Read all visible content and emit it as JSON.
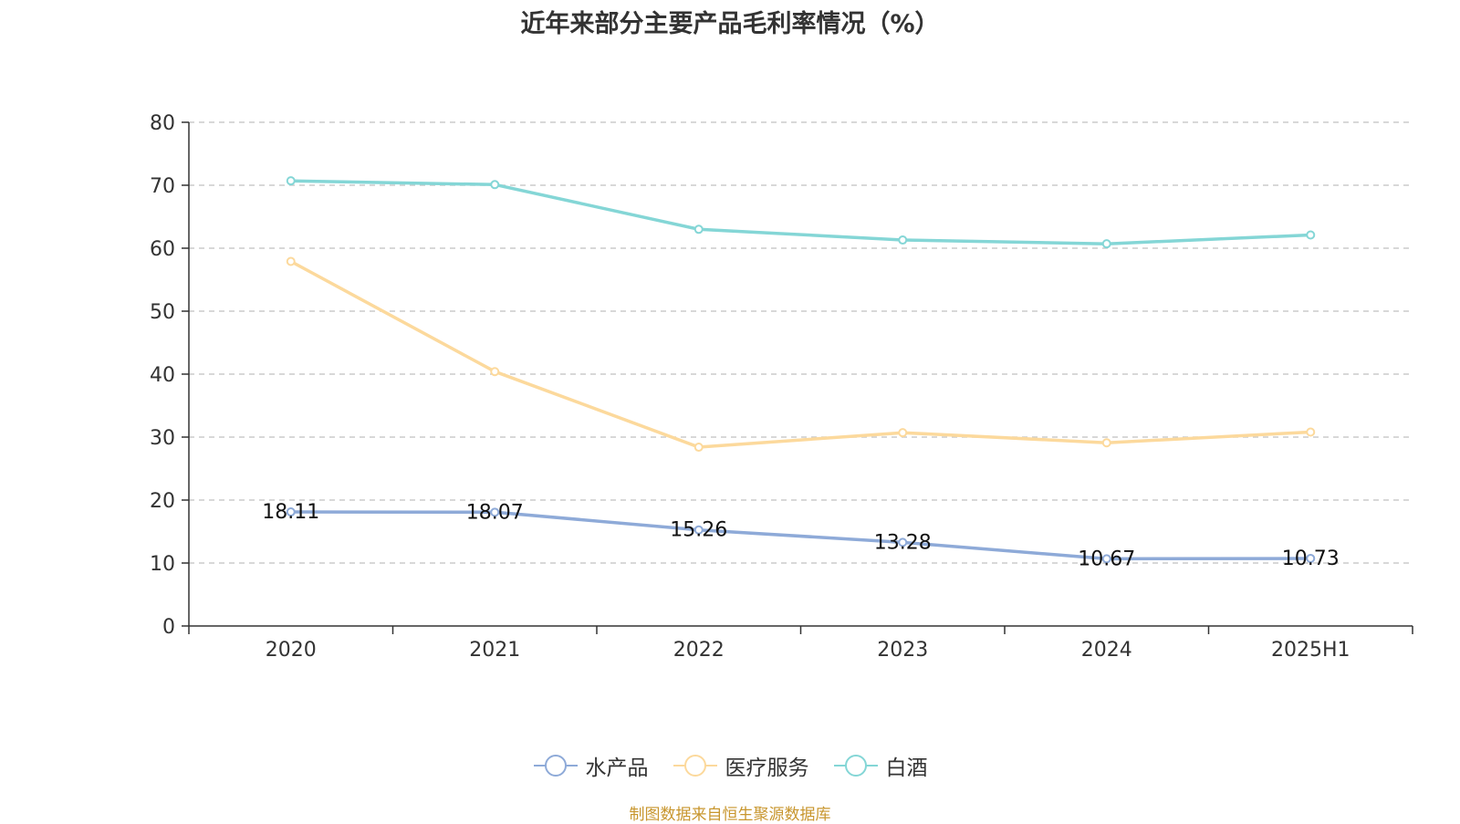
{
  "chart_data": {
    "type": "line",
    "title": "近年来部分主要产品毛利率情况（%）",
    "categories": [
      "2020",
      "2021",
      "2022",
      "2023",
      "2024",
      "2025H1"
    ],
    "ylim": [
      0,
      80
    ],
    "yticks": [
      0,
      10,
      20,
      30,
      40,
      50,
      60,
      70,
      80
    ],
    "grid": true,
    "legend_position": "bottom",
    "series": [
      {
        "name": "水产品",
        "color": "#8eaad8",
        "values": [
          18.11,
          18.07,
          15.26,
          13.28,
          10.67,
          10.73
        ],
        "labels": [
          "18.11",
          "18.07",
          "15.26",
          "13.28",
          "10.67",
          "10.73"
        ]
      },
      {
        "name": "医疗服务",
        "color": "#fcd99c",
        "values": [
          57.9,
          40.4,
          28.4,
          30.7,
          29.1,
          30.8
        ]
      },
      {
        "name": "白酒",
        "color": "#84d6d6",
        "values": [
          70.7,
          70.1,
          63.0,
          61.3,
          60.7,
          62.1
        ]
      }
    ]
  },
  "source": "制图数据来自恒生聚源数据库"
}
